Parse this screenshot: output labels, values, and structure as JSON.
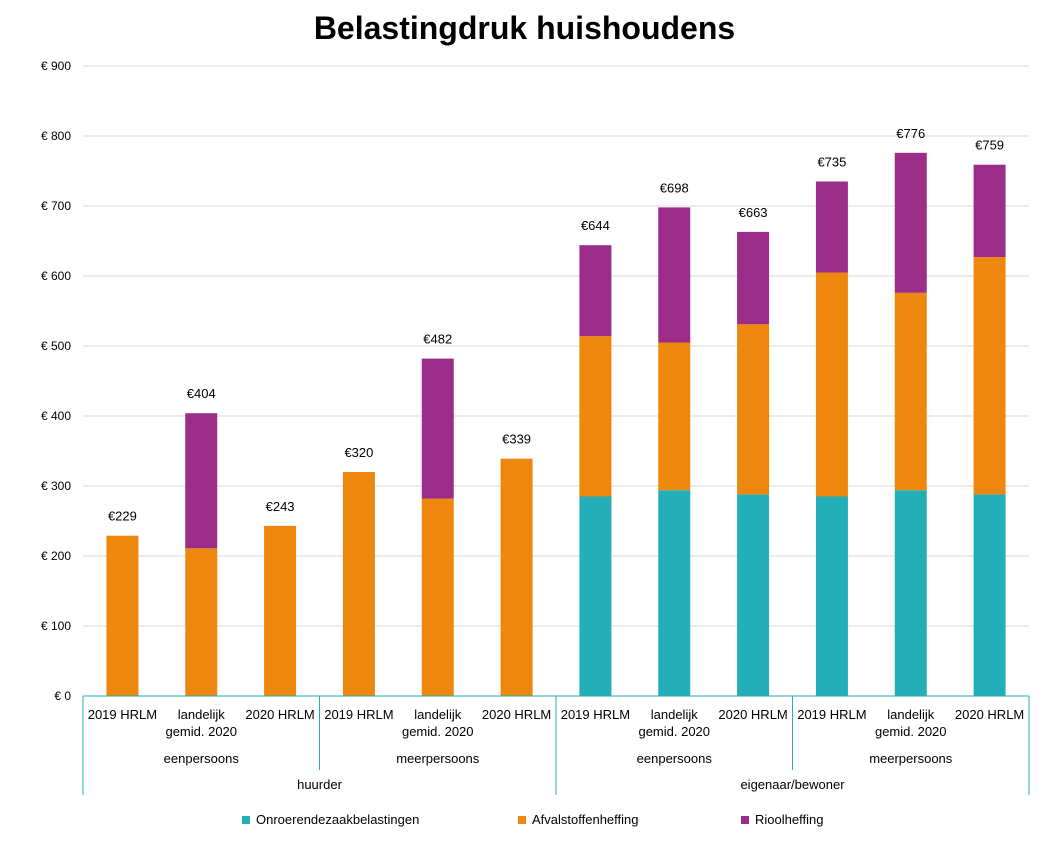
{
  "chart_data": {
    "type": "bar",
    "stacked": true,
    "title": "Belastingdruk huishoudens",
    "ylim": [
      0,
      900
    ],
    "yticks": [
      0,
      100,
      200,
      300,
      400,
      500,
      600,
      700,
      800,
      900
    ],
    "ytick_labels": [
      "€ 0",
      "€ 100",
      "€ 200",
      "€ 300",
      "€ 400",
      "€ 500",
      "€ 600",
      "€ 700",
      "€ 800",
      "€ 900"
    ],
    "grid": true,
    "legend_position": "bottom",
    "categories": [
      [
        "2019 HRLM"
      ],
      [
        "landelijk",
        "gemid. 2020"
      ],
      [
        "2020 HRLM"
      ],
      [
        "2019 HRLM"
      ],
      [
        "landelijk",
        "gemid. 2020"
      ],
      [
        "2020 HRLM"
      ],
      [
        "2019 HRLM"
      ],
      [
        "landelijk",
        "gemid. 2020"
      ],
      [
        "2020 HRLM"
      ],
      [
        "2019 HRLM"
      ],
      [
        "landelijk",
        "gemid. 2020"
      ],
      [
        "2020 HRLM"
      ]
    ],
    "groups_level2": [
      {
        "label": "eenpersoons",
        "count": 3
      },
      {
        "label": "meerpersoons",
        "count": 3
      },
      {
        "label": "eenpersoons",
        "count": 3
      },
      {
        "label": "meerpersoons",
        "count": 3
      }
    ],
    "groups_level3": [
      {
        "label": "huurder",
        "count": 6
      },
      {
        "label": "eigenaar/bewoner",
        "count": 6
      }
    ],
    "series": [
      {
        "name": "Onroerendezaakbelastingen",
        "color": "#23aeb8",
        "values": [
          0,
          0,
          0,
          0,
          0,
          0,
          285,
          294,
          288,
          285,
          294,
          288
        ]
      },
      {
        "name": "Afvalstoffenheffing",
        "color": "#ee870e",
        "values": [
          229,
          211,
          243,
          320,
          282,
          339,
          229,
          211,
          243,
          320,
          282,
          339
        ]
      },
      {
        "name": "Rioolheffing",
        "color": "#9b2d89",
        "values": [
          0,
          193,
          0,
          0,
          200,
          0,
          130,
          193,
          132,
          130,
          200,
          132
        ]
      }
    ],
    "totals": [
      229,
      404,
      243,
      320,
      482,
      339,
      644,
      698,
      663,
      735,
      776,
      759
    ],
    "total_labels": [
      "€229",
      "€404",
      "€243",
      "€320",
      "€482",
      "€339",
      "€644",
      "€698",
      "€663",
      "€735",
      "€776",
      "€759"
    ]
  },
  "colors": {
    "axis": "#23aeb8",
    "grid": "#d9d9d9"
  }
}
